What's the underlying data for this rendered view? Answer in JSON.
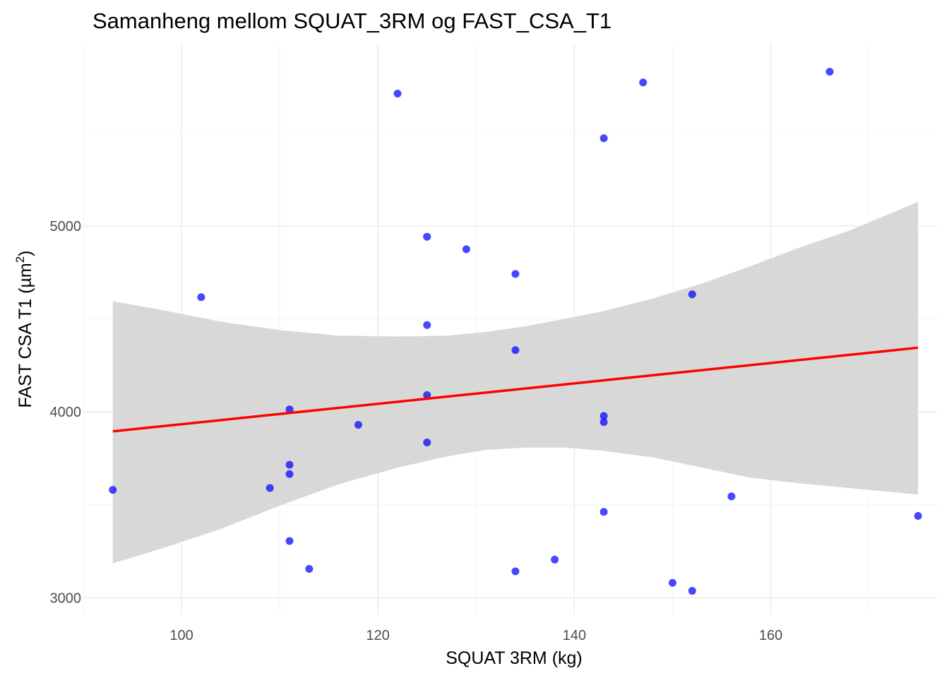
{
  "chart_data": {
    "type": "scatter",
    "title": "Samanheng mellom SQUAT_3RM og FAST_CSA_T1",
    "xlabel": "SQUAT 3RM (kg)",
    "ylabel": {
      "main": "FAST CSA T1 (",
      "unit": "µm",
      "sup": "2",
      "close": ")"
    },
    "xlim": [
      90,
      177
    ],
    "ylim": [
      2910,
      5980
    ],
    "x_ticks": [
      100,
      120,
      140,
      160
    ],
    "y_ticks": [
      3000,
      4000,
      5000
    ],
    "grid": true,
    "points": [
      {
        "x": 93,
        "y": 3580
      },
      {
        "x": 102,
        "y": 4617
      },
      {
        "x": 109,
        "y": 3590
      },
      {
        "x": 111,
        "y": 4013
      },
      {
        "x": 111,
        "y": 3715
      },
      {
        "x": 111,
        "y": 3665
      },
      {
        "x": 111,
        "y": 3305
      },
      {
        "x": 113,
        "y": 3155
      },
      {
        "x": 118,
        "y": 3930
      },
      {
        "x": 122,
        "y": 5712
      },
      {
        "x": 125,
        "y": 4942
      },
      {
        "x": 125,
        "y": 4467
      },
      {
        "x": 125,
        "y": 4090
      },
      {
        "x": 125,
        "y": 3835
      },
      {
        "x": 129,
        "y": 4875
      },
      {
        "x": 134,
        "y": 4742
      },
      {
        "x": 134,
        "y": 4332
      },
      {
        "x": 134,
        "y": 3142
      },
      {
        "x": 138,
        "y": 3205
      },
      {
        "x": 143,
        "y": 5472
      },
      {
        "x": 143,
        "y": 3978
      },
      {
        "x": 143,
        "y": 3945
      },
      {
        "x": 143,
        "y": 3462
      },
      {
        "x": 147,
        "y": 5772
      },
      {
        "x": 150,
        "y": 3080
      },
      {
        "x": 152,
        "y": 4632
      },
      {
        "x": 152,
        "y": 3037
      },
      {
        "x": 156,
        "y": 3545
      },
      {
        "x": 166,
        "y": 5830
      },
      {
        "x": 175,
        "y": 3440
      }
    ],
    "regression": {
      "x": [
        93,
        175
      ],
      "y": [
        3895,
        4345
      ]
    },
    "confidence_band": {
      "x": [
        93,
        98,
        104,
        110,
        116,
        122,
        127,
        131,
        135,
        139,
        143,
        148,
        153,
        158,
        163,
        168,
        175
      ],
      "upper": [
        4595,
        4548,
        4485,
        4440,
        4410,
        4405,
        4410,
        4430,
        4460,
        4500,
        4542,
        4610,
        4690,
        4785,
        4885,
        4975,
        5130
      ],
      "lower": [
        3185,
        3265,
        3370,
        3495,
        3610,
        3700,
        3760,
        3795,
        3808,
        3808,
        3790,
        3755,
        3700,
        3645,
        3615,
        3590,
        3555
      ]
    },
    "colors": {
      "points": "#0000ff",
      "regression_line": "#ff0000",
      "confidence_band": "#d6d6d6",
      "grid_major": "#ebebeb",
      "grid_minor": "#f4f4f4"
    }
  }
}
